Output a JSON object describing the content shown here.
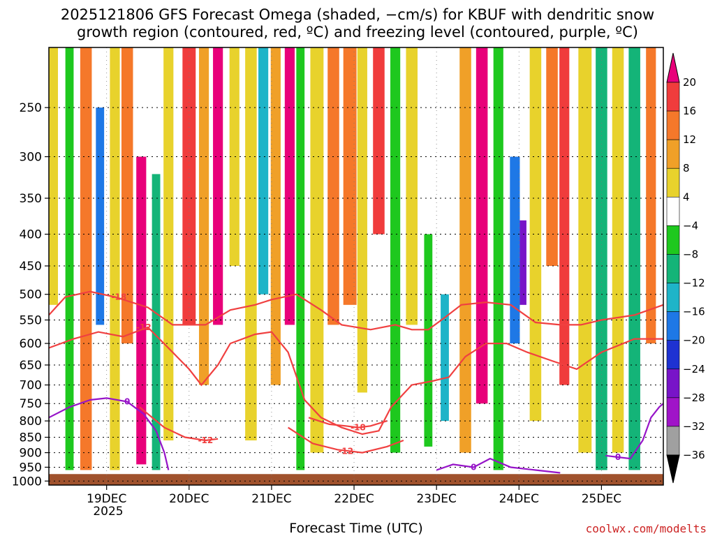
{
  "title": {
    "line1": "2025121806 GFS Forecast Omega (shaded, −cm/s) for KBUF with dendritic snow",
    "line2": "growth region (contoured, red, ºC) and freezing level (contoured, purple, ºC)"
  },
  "xlabel": "Forecast Time (UTC)",
  "credit": "coolwx.com/modelts",
  "year_label": "2025",
  "chart_data": {
    "type": "heatmap",
    "title": "2025121806 GFS Forecast Omega (shaded, −cm/s) for KBUF with dendritic snow growth region (contoured, red, ºC) and freezing level (contoured, purple, ºC)",
    "xlabel": "Forecast Time (UTC)",
    "ylabel": "Pressure (hPa)",
    "x_range_days": [
      18.3,
      25.75
    ],
    "x_ticks": [
      {
        "value": 19,
        "label": "19DEC"
      },
      {
        "value": 20,
        "label": "20DEC"
      },
      {
        "value": 21,
        "label": "21DEC"
      },
      {
        "value": 22,
        "label": "22DEC"
      },
      {
        "value": 23,
        "label": "23DEC"
      },
      {
        "value": 24,
        "label": "24DEC"
      },
      {
        "value": 25,
        "label": "25DEC"
      }
    ],
    "y_ticks": [
      250,
      300,
      350,
      400,
      450,
      500,
      550,
      600,
      650,
      700,
      750,
      800,
      850,
      900,
      950,
      1000
    ],
    "ylim": [
      200,
      1015
    ],
    "colorbar": {
      "labels": [
        "20",
        "16",
        "12",
        "8",
        "4",
        "−4",
        "−8",
        "−12",
        "−16",
        "−20",
        "−24",
        "−28",
        "−32",
        "−36"
      ],
      "bins": [
        {
          "range": ">20",
          "color": "#e8007a"
        },
        {
          "range": "16 to 20",
          "color": "#f03c3c"
        },
        {
          "range": "12 to 16",
          "color": "#f5782a"
        },
        {
          "range": "8 to 12",
          "color": "#f0a028"
        },
        {
          "range": "4 to 8",
          "color": "#e8d22c"
        },
        {
          "range": "-4 to 4",
          "color": "#ffffff"
        },
        {
          "range": "-8 to -4",
          "color": "#1ec81e"
        },
        {
          "range": "-12 to -8",
          "color": "#14b478"
        },
        {
          "range": "-16 to -12",
          "color": "#1eb4c8"
        },
        {
          "range": "-20 to -16",
          "color": "#1e78e6"
        },
        {
          "range": "-24 to -20",
          "color": "#1e32d2"
        },
        {
          "range": "-28 to -24",
          "color": "#7814c8"
        },
        {
          "range": "-32 to -28",
          "color": "#a014c8"
        },
        {
          "range": "-36 to -32",
          "color": "#a0a0a0"
        },
        {
          "range": "<-36",
          "color": "#000000"
        }
      ]
    },
    "omega_bands": [
      {
        "x": 18.35,
        "w": 0.12,
        "top": 200,
        "bottom": 520,
        "val": 6
      },
      {
        "x": 18.55,
        "w": 0.1,
        "top": 200,
        "bottom": 960,
        "val": -8
      },
      {
        "x": 18.75,
        "w": 0.14,
        "top": 200,
        "bottom": 960,
        "val": 14
      },
      {
        "x": 18.92,
        "w": 0.1,
        "top": 250,
        "bottom": 560,
        "val": -18
      },
      {
        "x": 19.1,
        "w": 0.12,
        "top": 200,
        "bottom": 960,
        "val": 8
      },
      {
        "x": 19.25,
        "w": 0.14,
        "top": 200,
        "bottom": 600,
        "val": 16
      },
      {
        "x": 19.42,
        "w": 0.12,
        "top": 300,
        "bottom": 940,
        "val": 22
      },
      {
        "x": 19.6,
        "w": 0.1,
        "top": 320,
        "bottom": 960,
        "val": -10
      },
      {
        "x": 19.75,
        "w": 0.12,
        "top": 200,
        "bottom": 860,
        "val": 8
      },
      {
        "x": 20.0,
        "w": 0.16,
        "top": 200,
        "bottom": 560,
        "val": 18
      },
      {
        "x": 20.18,
        "w": 0.12,
        "top": 200,
        "bottom": 700,
        "val": 10
      },
      {
        "x": 20.35,
        "w": 0.12,
        "top": 200,
        "bottom": 560,
        "val": 22
      },
      {
        "x": 20.55,
        "w": 0.12,
        "top": 200,
        "bottom": 450,
        "val": 8
      },
      {
        "x": 20.75,
        "w": 0.14,
        "top": 200,
        "bottom": 860,
        "val": 6
      },
      {
        "x": 20.9,
        "w": 0.12,
        "top": 200,
        "bottom": 500,
        "val": -14
      },
      {
        "x": 21.05,
        "w": 0.12,
        "top": 200,
        "bottom": 700,
        "val": 12
      },
      {
        "x": 21.22,
        "w": 0.12,
        "top": 200,
        "bottom": 560,
        "val": 22
      },
      {
        "x": 21.35,
        "w": 0.1,
        "top": 200,
        "bottom": 960,
        "val": -8
      },
      {
        "x": 21.55,
        "w": 0.16,
        "top": 200,
        "bottom": 900,
        "val": 8
      },
      {
        "x": 21.75,
        "w": 0.14,
        "top": 200,
        "bottom": 560,
        "val": 13
      },
      {
        "x": 21.95,
        "w": 0.16,
        "top": 200,
        "bottom": 520,
        "val": 16
      },
      {
        "x": 22.1,
        "w": 0.12,
        "top": 200,
        "bottom": 720,
        "val": 6
      },
      {
        "x": 22.3,
        "w": 0.14,
        "top": 200,
        "bottom": 400,
        "val": 18
      },
      {
        "x": 22.5,
        "w": 0.12,
        "top": 200,
        "bottom": 900,
        "val": -7
      },
      {
        "x": 22.7,
        "w": 0.14,
        "top": 200,
        "bottom": 560,
        "val": 8
      },
      {
        "x": 22.9,
        "w": 0.1,
        "top": 400,
        "bottom": 880,
        "val": -7
      },
      {
        "x": 23.1,
        "w": 0.1,
        "top": 500,
        "bottom": 800,
        "val": -14
      },
      {
        "x": 23.35,
        "w": 0.14,
        "top": 200,
        "bottom": 900,
        "val": 12
      },
      {
        "x": 23.55,
        "w": 0.14,
        "top": 200,
        "bottom": 750,
        "val": 22
      },
      {
        "x": 23.75,
        "w": 0.12,
        "top": 200,
        "bottom": 960,
        "val": -8
      },
      {
        "x": 23.95,
        "w": 0.12,
        "top": 300,
        "bottom": 600,
        "val": -18
      },
      {
        "x": 24.05,
        "w": 0.08,
        "top": 380,
        "bottom": 520,
        "val": -28
      },
      {
        "x": 24.2,
        "w": 0.14,
        "top": 200,
        "bottom": 800,
        "val": 6
      },
      {
        "x": 24.4,
        "w": 0.14,
        "top": 200,
        "bottom": 450,
        "val": 14
      },
      {
        "x": 24.55,
        "w": 0.12,
        "top": 200,
        "bottom": 700,
        "val": 18
      },
      {
        "x": 24.8,
        "w": 0.16,
        "top": 200,
        "bottom": 900,
        "val": 8
      },
      {
        "x": 25.0,
        "w": 0.14,
        "top": 200,
        "bottom": 960,
        "val": -9
      },
      {
        "x": 25.2,
        "w": 0.14,
        "top": 200,
        "bottom": 900,
        "val": 6
      },
      {
        "x": 25.4,
        "w": 0.14,
        "top": 200,
        "bottom": 960,
        "val": -11
      },
      {
        "x": 25.6,
        "w": 0.12,
        "top": 200,
        "bottom": 600,
        "val": 14
      }
    ],
    "contours": [
      {
        "label": "-18",
        "color": "#f04040",
        "label_at": [
          19.15,
          505
        ],
        "points": [
          [
            18.3,
            540
          ],
          [
            18.5,
            505
          ],
          [
            18.8,
            495
          ],
          [
            19.1,
            505
          ],
          [
            19.5,
            525
          ],
          [
            19.8,
            560
          ],
          [
            20.2,
            560
          ],
          [
            20.5,
            530
          ],
          [
            20.8,
            520
          ],
          [
            21.0,
            510
          ],
          [
            21.3,
            500
          ],
          [
            21.6,
            530
          ],
          [
            21.85,
            560
          ],
          [
            22.2,
            570
          ],
          [
            22.5,
            560
          ],
          [
            22.7,
            570
          ],
          [
            22.9,
            570
          ],
          [
            23.1,
            545
          ],
          [
            23.3,
            520
          ],
          [
            23.6,
            515
          ],
          [
            23.9,
            520
          ],
          [
            24.2,
            555
          ],
          [
            24.5,
            560
          ],
          [
            24.75,
            560
          ],
          [
            25.0,
            550
          ],
          [
            25.4,
            540
          ],
          [
            25.75,
            520
          ]
        ]
      },
      {
        "label": "-12",
        "color": "#f04040",
        "label_at": [
          19.45,
          565
        ],
        "points": [
          [
            18.3,
            610
          ],
          [
            18.6,
            590
          ],
          [
            18.9,
            575
          ],
          [
            19.2,
            585
          ],
          [
            19.5,
            565
          ],
          [
            19.8,
            620
          ],
          [
            20.0,
            660
          ],
          [
            20.15,
            700
          ],
          [
            20.35,
            650
          ],
          [
            20.5,
            600
          ],
          [
            20.8,
            580
          ],
          [
            21.0,
            575
          ],
          [
            21.2,
            620
          ],
          [
            21.4,
            740
          ],
          [
            21.6,
            790
          ],
          [
            21.85,
            820
          ],
          [
            22.1,
            840
          ],
          [
            22.3,
            830
          ],
          [
            22.45,
            760
          ],
          [
            22.7,
            700
          ],
          [
            22.95,
            690
          ],
          [
            23.15,
            680
          ],
          [
            23.35,
            630
          ],
          [
            23.6,
            600
          ],
          [
            23.85,
            600
          ],
          [
            24.1,
            620
          ],
          [
            24.4,
            640
          ],
          [
            24.7,
            660
          ],
          [
            25.0,
            620
          ],
          [
            25.4,
            590
          ],
          [
            25.75,
            590
          ]
        ]
      },
      {
        "label": "-18",
        "color": "#f04040",
        "label_at": [
          22.05,
          820
        ],
        "points": [
          [
            21.45,
            790
          ],
          [
            21.7,
            810
          ],
          [
            21.9,
            815
          ],
          [
            22.05,
            820
          ],
          [
            22.2,
            815
          ],
          [
            22.4,
            800
          ]
        ]
      },
      {
        "label": "-12",
        "color": "#f04040",
        "label_at": [
          21.9,
          895
        ],
        "points": [
          [
            21.2,
            820
          ],
          [
            21.5,
            870
          ],
          [
            21.8,
            890
          ],
          [
            22.1,
            900
          ],
          [
            22.4,
            880
          ],
          [
            22.6,
            860
          ]
        ]
      },
      {
        "label": "-12",
        "color": "#f04040",
        "label_at": [
          20.2,
          860
        ],
        "points": [
          [
            19.4,
            760
          ],
          [
            19.7,
            820
          ],
          [
            19.95,
            850
          ],
          [
            20.2,
            860
          ],
          [
            20.35,
            855
          ]
        ]
      },
      {
        "label": "0",
        "color": "#9614c8",
        "label_at": [
          19.25,
          745
        ],
        "points": [
          [
            18.3,
            790
          ],
          [
            18.55,
            760
          ],
          [
            18.8,
            740
          ],
          [
            19.0,
            735
          ],
          [
            19.25,
            745
          ],
          [
            19.45,
            780
          ],
          [
            19.6,
            830
          ],
          [
            19.7,
            900
          ],
          [
            19.75,
            960
          ]
        ]
      },
      {
        "label": "0",
        "color": "#9614c8",
        "label_at": [
          23.45,
          950
        ],
        "points": [
          [
            23.0,
            960
          ],
          [
            23.2,
            940
          ],
          [
            23.45,
            950
          ],
          [
            23.65,
            920
          ],
          [
            23.9,
            950
          ],
          [
            24.2,
            960
          ],
          [
            24.5,
            970
          ]
        ]
      },
      {
        "label": "0",
        "color": "#9614c8",
        "label_at": [
          25.2,
          915
        ],
        "points": [
          [
            25.05,
            910
          ],
          [
            25.2,
            915
          ],
          [
            25.35,
            920
          ],
          [
            25.5,
            860
          ],
          [
            25.6,
            790
          ],
          [
            25.7,
            760
          ],
          [
            25.75,
            750
          ]
        ]
      }
    ]
  }
}
